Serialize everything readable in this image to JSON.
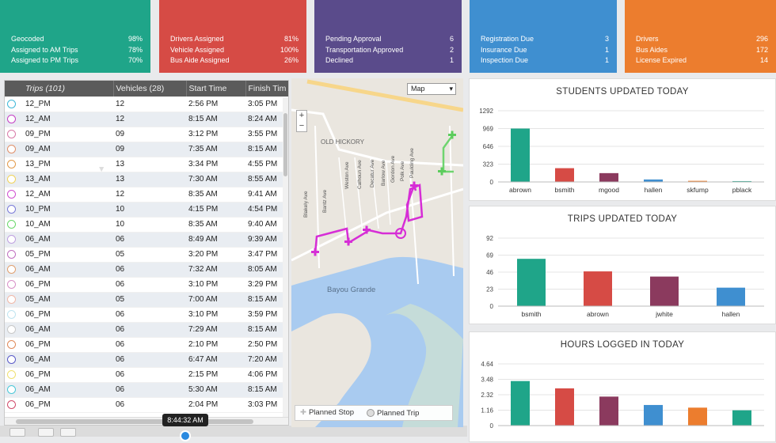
{
  "tiles": [
    {
      "color": "#1fa589",
      "rows": [
        [
          "Geocoded",
          "98%"
        ],
        [
          "Assigned to AM Trips",
          "78%"
        ],
        [
          "Assigned to PM Trips",
          "70%"
        ]
      ]
    },
    {
      "color": "#d64b45",
      "rows": [
        [
          "Drivers Assigned",
          "81%"
        ],
        [
          "Vehicle Assigned",
          "100%"
        ],
        [
          "Bus Aide Assigned",
          "26%"
        ]
      ]
    },
    {
      "color": "#5a4b8b",
      "rows": [
        [
          "Pending Approval",
          "6"
        ],
        [
          "Transportation Approved",
          "2"
        ],
        [
          "Declined",
          "1"
        ]
      ]
    },
    {
      "color": "#3f8fd0",
      "rows": [
        [
          "Registration Due",
          "3"
        ],
        [
          "Insurance Due",
          "1"
        ],
        [
          "Inspection Due",
          "1"
        ]
      ]
    },
    {
      "color": "#ec7d2e",
      "rows": [
        [
          "Drivers",
          "296"
        ],
        [
          "Bus Aides",
          "172"
        ],
        [
          "License Expired",
          "14"
        ]
      ]
    }
  ],
  "grid": {
    "headers": {
      "trips": "Trips (101)",
      "vehicles": "Vehicles (28)",
      "start": "Start Time",
      "finish": "Finish Tim"
    },
    "rows": [
      {
        "dot": "#3fb8d8",
        "trip": "12_PM",
        "vehicle": "12",
        "start": "2:56 PM",
        "finish": "3:05 PM"
      },
      {
        "dot": "#c43fc4",
        "trip": "12_AM",
        "vehicle": "12",
        "start": "8:15 AM",
        "finish": "8:24 AM"
      },
      {
        "dot": "#d87aa8",
        "trip": "09_PM",
        "vehicle": "09",
        "start": "3:12 PM",
        "finish": "3:55 PM"
      },
      {
        "dot": "#e0906a",
        "trip": "09_AM",
        "vehicle": "09",
        "start": "7:35 AM",
        "finish": "8:15 AM"
      },
      {
        "dot": "#e39a4a",
        "trip": "13_PM",
        "vehicle": "13",
        "start": "3:34 PM",
        "finish": "4:55 PM"
      },
      {
        "dot": "#f0d35a",
        "trip": "13_AM",
        "vehicle": "13",
        "start": "7:30 AM",
        "finish": "8:55 AM"
      },
      {
        "dot": "#d04fd0",
        "trip": "12_AM",
        "vehicle": "12",
        "start": "8:35 AM",
        "finish": "9:41 AM"
      },
      {
        "dot": "#7a7ad8",
        "trip": "10_PM",
        "vehicle": "10",
        "start": "4:15 PM",
        "finish": "4:54 PM"
      },
      {
        "dot": "#6ad86a",
        "trip": "10_AM",
        "vehicle": "10",
        "start": "8:35 AM",
        "finish": "9:40 AM"
      },
      {
        "dot": "#bfa0e0",
        "trip": "06_AM",
        "vehicle": "06",
        "start": "8:49 AM",
        "finish": "9:39 AM"
      },
      {
        "dot": "#c070c0",
        "trip": "05_PM",
        "vehicle": "05",
        "start": "3:20 PM",
        "finish": "3:47 PM"
      },
      {
        "dot": "#e0a070",
        "trip": "06_AM",
        "vehicle": "06",
        "start": "7:32 AM",
        "finish": "8:05 AM"
      },
      {
        "dot": "#d890c8",
        "trip": "06_PM",
        "vehicle": "06",
        "start": "3:10 PM",
        "finish": "3:29 PM"
      },
      {
        "dot": "#f0b8a8",
        "trip": "05_AM",
        "vehicle": "05",
        "start": "7:00 AM",
        "finish": "8:15 AM"
      },
      {
        "dot": "#bfe4f0",
        "trip": "06_PM",
        "vehicle": "06",
        "start": "3:10 PM",
        "finish": "3:59 PM"
      },
      {
        "dot": "#c8c8c8",
        "trip": "06_AM",
        "vehicle": "06",
        "start": "7:29 AM",
        "finish": "8:15 AM"
      },
      {
        "dot": "#e08a5a",
        "trip": "06_PM",
        "vehicle": "06",
        "start": "2:10 PM",
        "finish": "2:50 PM"
      },
      {
        "dot": "#5a5ac8",
        "trip": "06_AM",
        "vehicle": "06",
        "start": "6:47 AM",
        "finish": "7:20 AM"
      },
      {
        "dot": "#f0e070",
        "trip": "06_PM",
        "vehicle": "06",
        "start": "2:15 PM",
        "finish": "4:06 PM"
      },
      {
        "dot": "#4ac8d8",
        "trip": "06_AM",
        "vehicle": "06",
        "start": "5:30 AM",
        "finish": "8:15 AM"
      },
      {
        "dot": "#d04a6a",
        "trip": "06_PM",
        "vehicle": "06",
        "start": "2:04 PM",
        "finish": "3:03 PM"
      }
    ]
  },
  "timeline": {
    "current_time": "8:44:32 AM"
  },
  "map": {
    "type_label": "Map",
    "labels": [
      "OLD HICKORY",
      "Bayou Grande",
      "Weston Ave",
      "Calhoun Ave",
      "Decatur Ave",
      "Barlow Ave",
      "Gordon Ave",
      "Polk Ave",
      "Paulding Ave",
      "Blakely Ave",
      "Bantz Ave"
    ],
    "legend_stop": "Planned Stop",
    "legend_trip": "Planned Trip"
  },
  "charts": [
    {
      "id": "students",
      "title": "STUDENTS UPDATED TODAY",
      "chart_data": {
        "type": "bar",
        "title": "STUDENTS UPDATED TODAY",
        "categories": [
          "abrown",
          "bsmith",
          "mgood",
          "hallen",
          "skfump",
          "pblack"
        ],
        "values": [
          969,
          250,
          160,
          45,
          20,
          15
        ],
        "colors": [
          "#1fa589",
          "#d64b45",
          "#8b3a5e",
          "#3f8fd0",
          "#ec7d2e",
          "#1fa589"
        ],
        "yticks": [
          0,
          323,
          646,
          969,
          1292
        ],
        "ylim": [
          0,
          1292
        ]
      }
    },
    {
      "id": "trips",
      "title": "TRIPS UPDATED TODAY",
      "chart_data": {
        "type": "bar",
        "title": "TRIPS UPDATED TODAY",
        "categories": [
          "bsmith",
          "abrown",
          "jwhite",
          "hallen"
        ],
        "values": [
          64,
          47,
          40,
          25
        ],
        "colors": [
          "#1fa589",
          "#d64b45",
          "#8b3a5e",
          "#3f8fd0"
        ],
        "yticks": [
          0,
          23,
          46,
          69,
          92
        ],
        "ylim": [
          0,
          92
        ]
      }
    },
    {
      "id": "hours",
      "title": "HOURS LOGGED IN TODAY",
      "chart_data": {
        "type": "bar",
        "title": "HOURS LOGGED IN TODAY",
        "categories": [
          "",
          "",
          "",
          "",
          "",
          ""
        ],
        "values": [
          3.35,
          2.8,
          2.18,
          1.55,
          1.35,
          1.15
        ],
        "colors": [
          "#1fa589",
          "#d64b45",
          "#8b3a5e",
          "#3f8fd0",
          "#ec7d2e",
          "#1fa589"
        ],
        "yticks": [
          0,
          1.16,
          2.32,
          3.48,
          4.64
        ],
        "ylim": [
          0,
          4.64
        ]
      }
    }
  ]
}
